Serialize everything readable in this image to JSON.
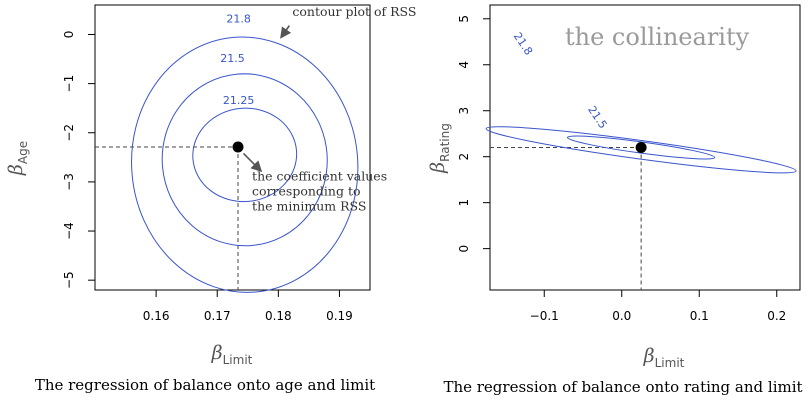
{
  "colors": {
    "contour": "#3a55cc",
    "arrow": "#555555",
    "guide": "#444444",
    "point": "#000000"
  },
  "chart_data": [
    {
      "type": "contour",
      "caption": "The regression of balance onto age and limit",
      "xlabel": {
        "symbol": "β",
        "sub": "Limit"
      },
      "ylabel": {
        "symbol": "β",
        "sub": "Age"
      },
      "xlim": [
        0.15,
        0.195
      ],
      "ylim": [
        -5.2,
        0.6
      ],
      "xticks": [
        0.16,
        0.17,
        0.18,
        0.19
      ],
      "xtick_labels": [
        "0.16",
        "0.17",
        "0.18",
        "0.19"
      ],
      "yticks": [
        -5,
        -4,
        -3,
        -2,
        -1,
        0
      ],
      "ytick_labels": [
        "−5",
        "−4",
        "−3",
        "−2",
        "−1",
        "0"
      ],
      "minimum": {
        "x": 0.1734,
        "y": -2.29
      },
      "contours": [
        {
          "label": "21.25",
          "cx": 0.1745,
          "cy": -2.45,
          "rx": 0.0085,
          "ry": 0.95,
          "angle": -5,
          "label_at": {
            "x": 0.1735,
            "y": -1.35
          }
        },
        {
          "label": "21.5",
          "cx": 0.1745,
          "cy": -2.55,
          "rx": 0.0135,
          "ry": 1.75,
          "angle": -5,
          "label_at": {
            "x": 0.1725,
            "y": -0.5
          }
        },
        {
          "label": "21.8",
          "cx": 0.1745,
          "cy": -2.65,
          "rx": 0.0185,
          "ry": 2.6,
          "angle": -5,
          "label_at": {
            "x": 0.1735,
            "y": 0.3
          }
        }
      ],
      "annotations": [
        {
          "text_lines": [
            "contour plot of RSS"
          ],
          "text_at": {
            "x": 0.1823,
            "y": 0.38
          },
          "arrow_from": {
            "x": 0.1818,
            "y": 0.18
          },
          "arrow_to": {
            "x": 0.1805,
            "y": -0.05
          }
        },
        {
          "text_lines": [
            "the coefficient values",
            "corresponding to",
            "the minimum RSS"
          ],
          "text_at": {
            "x": 0.1757,
            "y": -2.97
          },
          "arrow_from": {
            "x": 0.1743,
            "y": -2.42
          },
          "arrow_to": {
            "x": 0.1771,
            "y": -2.77
          }
        }
      ]
    },
    {
      "type": "contour",
      "title": "the collinearity",
      "caption": "The regression of balance onto rating and limit",
      "xlabel": {
        "symbol": "β",
        "sub": "Limit"
      },
      "ylabel": {
        "symbol": "β",
        "sub": "Rating"
      },
      "xlim": [
        -0.17,
        0.23
      ],
      "ylim": [
        -0.9,
        5.3
      ],
      "xticks": [
        -0.1,
        0.0,
        0.1,
        0.2
      ],
      "xtick_labels": [
        "−0.1",
        "0.0",
        "0.1",
        "0.2"
      ],
      "yticks": [
        0,
        1,
        2,
        3,
        4,
        5
      ],
      "ytick_labels": [
        "0",
        "1",
        "2",
        "3",
        "4",
        "5"
      ],
      "minimum": {
        "x": 0.025,
        "y": 2.2
      },
      "contours": [
        {
          "label": "21.5",
          "cx": 0.025,
          "cy": 2.2,
          "rx": 0.095,
          "ry": 0.012,
          "angle": -27.5,
          "label_at": {
            "x": -0.032,
            "y": 2.85
          }
        },
        {
          "label": "21.8",
          "cx": 0.025,
          "cy": 2.15,
          "rx": 0.2,
          "ry": 0.02,
          "angle": -27.5,
          "label_at": {
            "x": -0.128,
            "y": 4.45
          }
        }
      ],
      "annotations": []
    }
  ]
}
